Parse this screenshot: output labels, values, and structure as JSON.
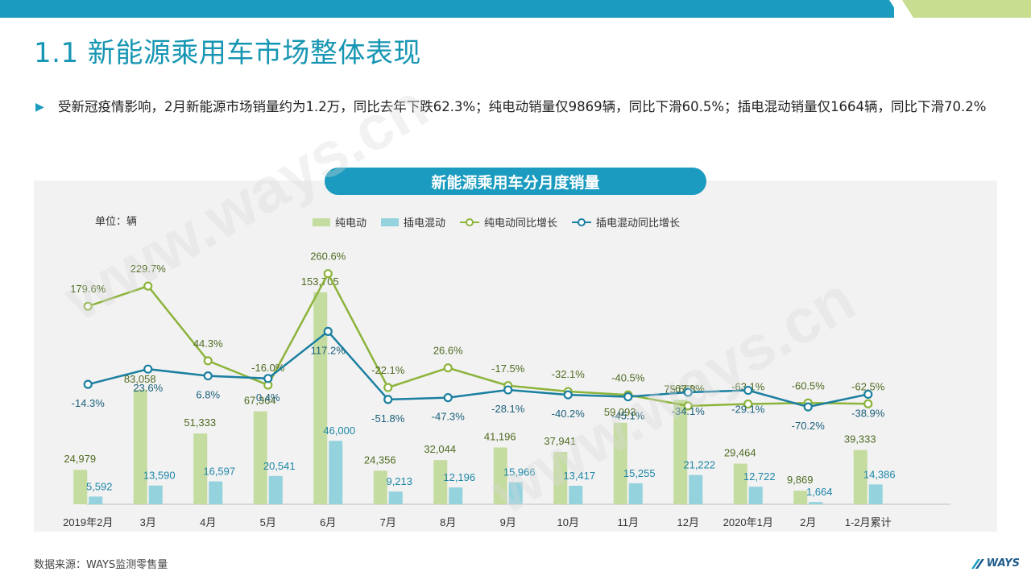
{
  "header": {
    "title": "1.1 新能源乘用车市场整体表现",
    "colors": {
      "teal": "#1a9bbf",
      "green": "#8cc34a"
    }
  },
  "bullet": {
    "text": "受新冠疫情影响，2月新能源市场销量约为1.2万，同比去年下跌62.3%；纯电动销量仅9869辆，同比下滑60.5%；插电混动销量仅1664辆，同比下滑70.2%"
  },
  "chart_data": {
    "type": "bar",
    "title": "新能源乘用车分月度销量",
    "unit_label": "单位：辆",
    "categories": [
      "2019年2月",
      "3月",
      "4月",
      "5月",
      "6月",
      "7月",
      "8月",
      "9月",
      "10月",
      "11月",
      "12月",
      "2020年1月",
      "2月",
      "1-2月累计"
    ],
    "series": [
      {
        "name": "纯电动",
        "type": "bar",
        "color": "#c5dca0",
        "values": [
          24979,
          83058,
          51333,
          67364,
          153705,
          24356,
          32044,
          41196,
          37941,
          59093,
          75653,
          29464,
          9869,
          39333
        ],
        "labels": [
          "24,979",
          "83,058",
          "51,333",
          "67,364",
          "153,705",
          "24,356",
          "32,044",
          "41,196",
          "37,941",
          "59,093",
          "75,653",
          "29,464",
          "9,869",
          "39,333"
        ]
      },
      {
        "name": "插电混动",
        "type": "bar",
        "color": "#94d2de",
        "values": [
          5592,
          13590,
          16597,
          20541,
          46000,
          9213,
          12196,
          15966,
          13417,
          15255,
          21222,
          12722,
          1664,
          14386
        ],
        "labels": [
          "5,592",
          "13,590",
          "16,597",
          "20,541",
          "46,000",
          "9,213",
          "12,196",
          "15,966",
          "13,417",
          "15,255",
          "21,222",
          "12,722",
          "1,664",
          "14,386"
        ]
      },
      {
        "name": "纯电动同比增长",
        "type": "line",
        "color": "#8cb33a",
        "values": [
          179.6,
          229.7,
          44.3,
          -16.0,
          260.6,
          -22.1,
          26.6,
          -17.5,
          -32.1,
          -40.5,
          -67.8,
          -63.1,
          -60.5,
          -62.5
        ],
        "labels": [
          "179.6%",
          "229.7%",
          "44.3%",
          "-16.0%",
          "260.6%",
          "-22.1%",
          "26.6%",
          "-17.5%",
          "-32.1%",
          "-40.5%",
          "-67.8%",
          "-63.1%",
          "-60.5%",
          "-62.5%"
        ]
      },
      {
        "name": "插电混动同比增长",
        "type": "line",
        "color": "#1a7fa0",
        "values": [
          -14.3,
          23.6,
          6.8,
          0.4,
          117.2,
          -51.8,
          -47.3,
          -28.1,
          -40.2,
          -45.1,
          -34.1,
          -29.1,
          -70.2,
          -38.9
        ],
        "labels": [
          "-14.3%",
          "23.6%",
          "6.8%",
          "0.4%",
          "117.2%",
          "-51.8%",
          "-47.3%",
          "-28.1%",
          "-40.2%",
          "-45.1%",
          "-34.1%",
          "-29.1%",
          "-70.2%",
          "-38.9%"
        ]
      }
    ],
    "ylim": [
      0,
      160000
    ],
    "growth_ylim": [
      -100,
      300
    ],
    "grid": false,
    "legend_position": "top"
  },
  "footer": {
    "source": "数据来源：WAYS监测零售量",
    "logo_text": "WAYS"
  },
  "watermark": {
    "text": "www.ways.cn"
  }
}
